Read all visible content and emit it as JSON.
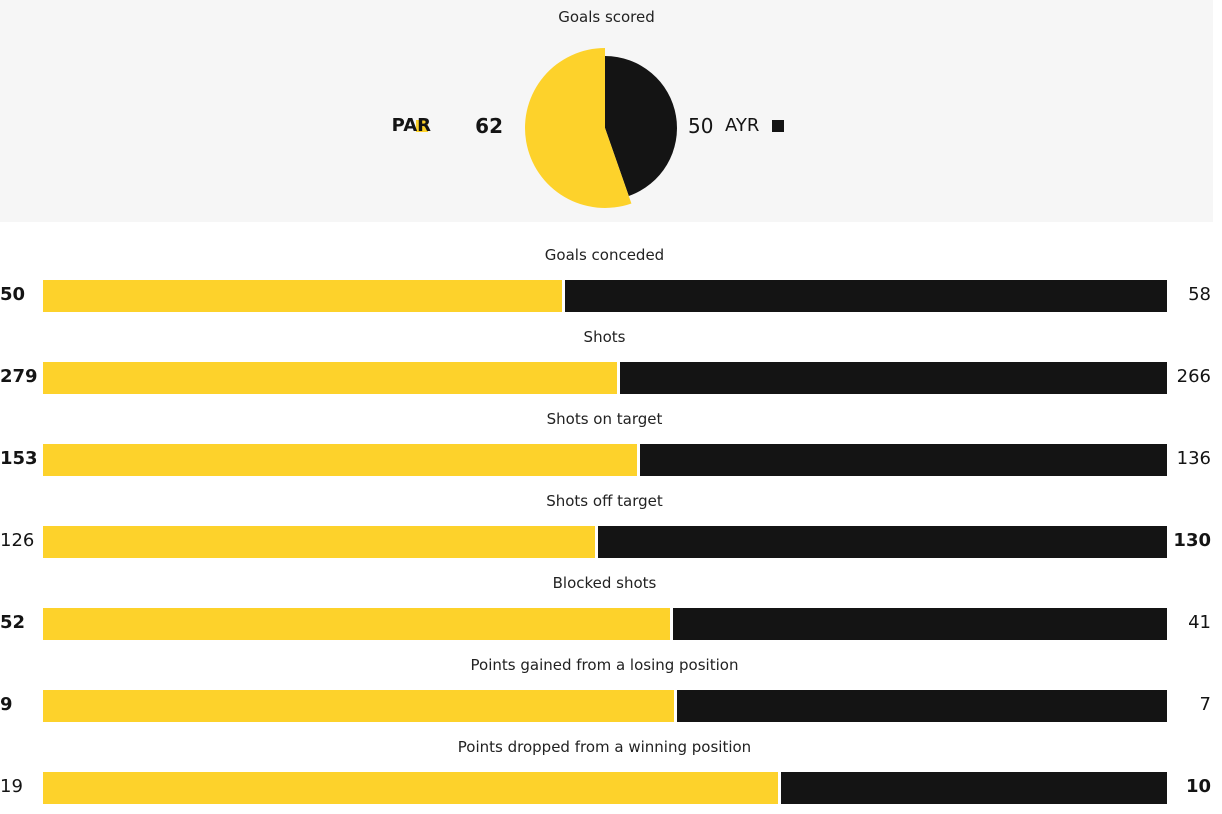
{
  "colors": {
    "home": "#fdd22b",
    "away": "#141414",
    "panel": "#f6f6f6"
  },
  "chart_data": [
    {
      "type": "pie",
      "title": "Goals scored",
      "series": [
        {
          "name": "PAR",
          "value": 62,
          "color": "#fdd22b"
        },
        {
          "name": "AYR",
          "value": 50,
          "color": "#141414"
        }
      ]
    },
    {
      "type": "bar",
      "orientation": "horizontal-stacked-comparison",
      "teams": [
        "PAR",
        "AYR"
      ],
      "rows": [
        {
          "label": "Goals conceded",
          "home": 50,
          "away": 58,
          "bold": "home"
        },
        {
          "label": "Shots",
          "home": 279,
          "away": 266,
          "bold": "home"
        },
        {
          "label": "Shots on target",
          "home": 153,
          "away": 136,
          "bold": "home"
        },
        {
          "label": "Shots off target",
          "home": 126,
          "away": 130,
          "bold": "away"
        },
        {
          "label": "Blocked shots",
          "home": 52,
          "away": 41,
          "bold": "home"
        },
        {
          "label": "Points gained from a losing position",
          "home": 9,
          "away": 7,
          "bold": "home"
        },
        {
          "label": "Points dropped from a winning position",
          "home": 19,
          "away": 10,
          "bold": "away"
        }
      ]
    }
  ]
}
